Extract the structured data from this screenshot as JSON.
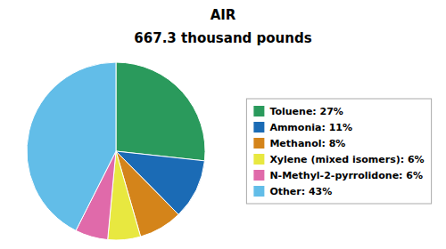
{
  "chart_data": {
    "type": "pie",
    "title": "AIR",
    "subtitle": "667.3 thousand pounds",
    "categories": [
      "Toluene: 27%",
      "Ammonia: 11%",
      "Methanol: 8%",
      "Xylene (mixed isomers): 6%",
      "N-Methyl-2-pyrrolidone: 6%",
      "Other: 43%"
    ],
    "values": [
      27,
      11,
      8,
      6,
      6,
      43
    ],
    "colors": [
      "#2a9a5c",
      "#1b6bb5",
      "#d4841a",
      "#e8e840",
      "#e06aaa",
      "#62bde8"
    ],
    "legend": "right"
  }
}
